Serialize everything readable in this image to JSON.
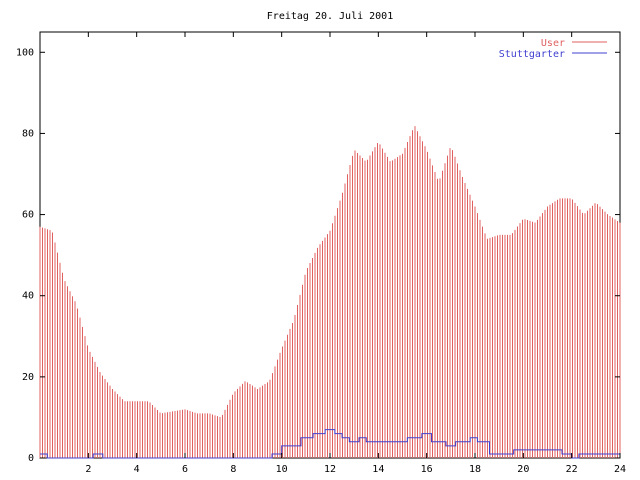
{
  "chart_data": {
    "type": "bar",
    "title": "Freitag 20. Juli 2001",
    "xlabel": "",
    "ylabel": "",
    "xlim": [
      0,
      24
    ],
    "ylim": [
      0,
      105
    ],
    "grid": false,
    "legend_position": "top-right",
    "x_ticks": [
      "2",
      "4",
      "6",
      "8",
      "10",
      "12",
      "14",
      "16",
      "18",
      "20",
      "22",
      "24"
    ],
    "y_ticks": [
      "0",
      "20",
      "40",
      "60",
      "80",
      "100"
    ],
    "series": [
      {
        "name": "User",
        "style": "impulses",
        "color": "#e06060",
        "points": [
          [
            0,
            57
          ],
          [
            0.5,
            56
          ],
          [
            1,
            44
          ],
          [
            1.5,
            38
          ],
          [
            2,
            27
          ],
          [
            2.5,
            21
          ],
          [
            3,
            17
          ],
          [
            3.5,
            14
          ],
          [
            4,
            14
          ],
          [
            4.5,
            14
          ],
          [
            5,
            11
          ],
          [
            6,
            12
          ],
          [
            6.5,
            11
          ],
          [
            7,
            11
          ],
          [
            7.5,
            10
          ],
          [
            8,
            16
          ],
          [
            8.5,
            19
          ],
          [
            9,
            17
          ],
          [
            9.5,
            19
          ],
          [
            10,
            27
          ],
          [
            10.5,
            34
          ],
          [
            11,
            46
          ],
          [
            11.5,
            52
          ],
          [
            12,
            56
          ],
          [
            12.5,
            65
          ],
          [
            13,
            76
          ],
          [
            13.5,
            73
          ],
          [
            14,
            78
          ],
          [
            14.5,
            73
          ],
          [
            15,
            75
          ],
          [
            15.5,
            82
          ],
          [
            16,
            76
          ],
          [
            16.5,
            68
          ],
          [
            17,
            77
          ],
          [
            17.5,
            69
          ],
          [
            18,
            62
          ],
          [
            18.5,
            54
          ],
          [
            19,
            55
          ],
          [
            19.5,
            55
          ],
          [
            20,
            59
          ],
          [
            20.5,
            58
          ],
          [
            21,
            62
          ],
          [
            21.5,
            64
          ],
          [
            22,
            64
          ],
          [
            22.5,
            60
          ],
          [
            23,
            63
          ],
          [
            23.5,
            60
          ],
          [
            24,
            58
          ]
        ]
      },
      {
        "name": "Stuttgarter",
        "style": "steps",
        "color": "#4040d0",
        "points": [
          [
            0,
            1
          ],
          [
            0.3,
            0
          ],
          [
            2.2,
            1
          ],
          [
            2.6,
            0
          ],
          [
            9.6,
            1
          ],
          [
            10,
            3
          ],
          [
            10.5,
            3
          ],
          [
            10.8,
            5
          ],
          [
            11.3,
            6
          ],
          [
            11.8,
            7
          ],
          [
            12.2,
            6
          ],
          [
            12.5,
            5
          ],
          [
            12.8,
            4
          ],
          [
            13.2,
            5
          ],
          [
            13.5,
            4
          ],
          [
            14,
            4
          ],
          [
            15,
            4
          ],
          [
            15.2,
            5
          ],
          [
            15.8,
            6
          ],
          [
            16.2,
            4
          ],
          [
            16.8,
            3
          ],
          [
            17.2,
            4
          ],
          [
            17.8,
            5
          ],
          [
            18.1,
            4
          ],
          [
            18.6,
            1
          ],
          [
            19.6,
            2
          ],
          [
            21.6,
            1
          ],
          [
            22,
            0
          ],
          [
            22.3,
            1
          ],
          [
            24,
            1
          ]
        ]
      }
    ]
  }
}
